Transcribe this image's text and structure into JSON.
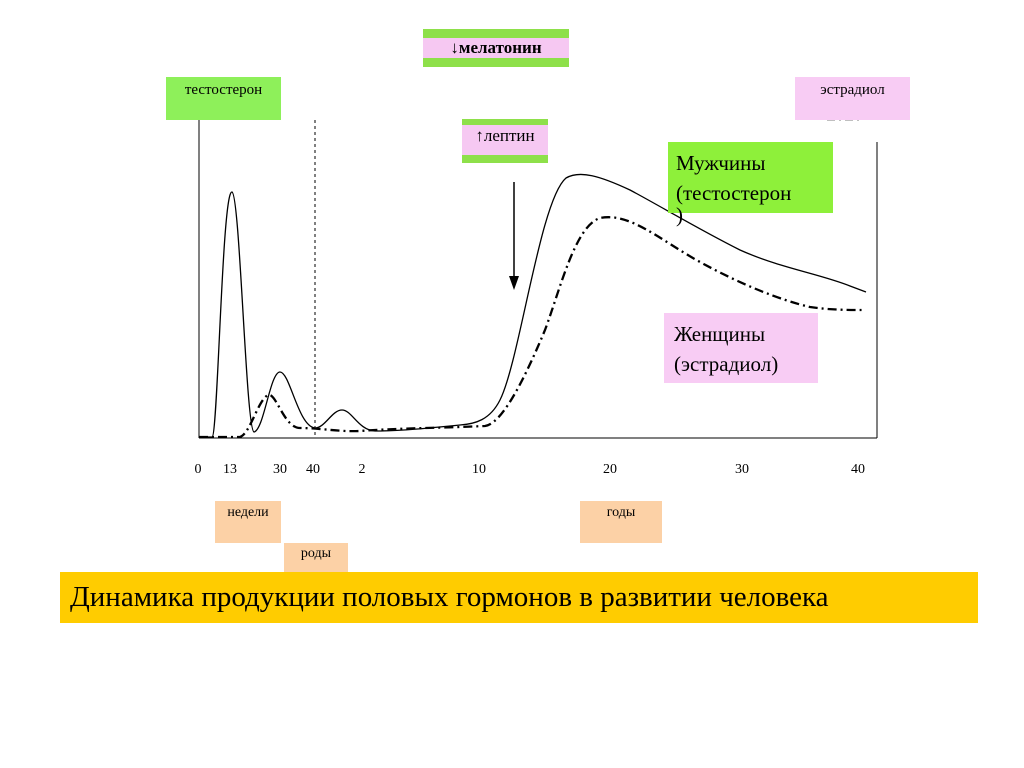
{
  "labels": {
    "melatonin": "↓мелатонин",
    "leptin": "↑лептин",
    "testosterone": "тестостерон",
    "estradiol": "эстрадиол",
    "men_line1": "Мужчины",
    "men_line2": "(тестостерон",
    "men_line3": ")",
    "women_line1": "Женщины",
    "women_line2": "(эстрадиол)",
    "weeks": "недели",
    "birth": "роды",
    "years": "годы",
    "caption": "Динамика продукции половых гормонов в развитии человека"
  },
  "colors": {
    "green": "#8ef05a",
    "pink": "#f8ccf4",
    "peach": "#fcd1a6",
    "caption_bg": "#ffcc00"
  },
  "chart_data": {
    "type": "line",
    "title": "Динамика продукции половых гормонов в развитии человека",
    "x_tick_labels": [
      "0",
      "13",
      "30",
      "40",
      "2",
      "10",
      "20",
      "30",
      "40"
    ],
    "x_scale_note_segments": [
      {
        "label": "недели",
        "ticks": [
          "0",
          "13",
          "30",
          "40"
        ]
      },
      {
        "label": "годы",
        "ticks": [
          "2",
          "10",
          "20",
          "30",
          "40"
        ]
      }
    ],
    "birth_marker_at_tick": "40",
    "y_axis_labels": "none",
    "series": [
      {
        "name": "Мужчины (тестостерон)",
        "style": "solid",
        "points": [
          [
            "0",
            0.0
          ],
          [
            "13",
            1.0
          ],
          [
            "20",
            0.05
          ],
          [
            "30",
            0.25
          ],
          [
            "40",
            0.04
          ],
          [
            "2",
            0.1
          ],
          [
            "10",
            0.05
          ],
          [
            "20",
            1.0
          ],
          [
            "30",
            0.62
          ],
          [
            "40",
            0.54
          ]
        ]
      },
      {
        "name": "Женщины (эстрадиол)",
        "style": "dash-dot",
        "points": [
          [
            "0",
            0.0
          ],
          [
            "13",
            0.0
          ],
          [
            "25",
            0.17
          ],
          [
            "30",
            0.05
          ],
          [
            "40",
            0.04
          ],
          [
            "2",
            0.03
          ],
          [
            "10",
            0.04
          ],
          [
            "20",
            0.84
          ],
          [
            "30",
            0.48
          ],
          [
            "40",
            0.48
          ]
        ]
      }
    ],
    "annotations": [
      "↓мелатонин",
      "↑лептин"
    ],
    "grid": false
  }
}
